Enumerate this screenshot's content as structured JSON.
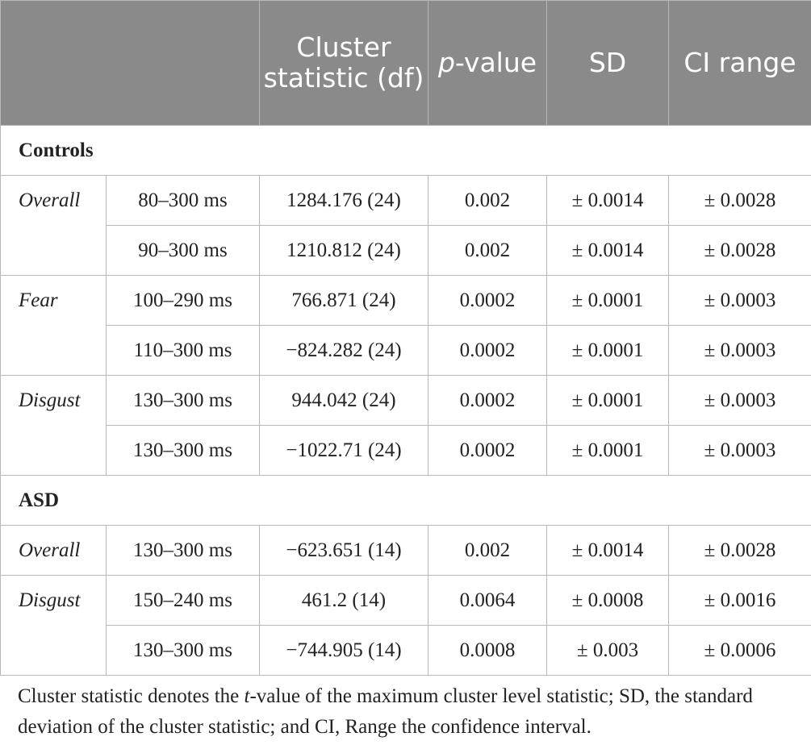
{
  "header": {
    "col_blank": "",
    "col_cluster": "Cluster statistic (df)",
    "col_p_italic": "p",
    "col_p_rest": "-value",
    "col_sd": "SD",
    "col_ci": "CI range"
  },
  "groups": [
    {
      "label": "Controls",
      "rows": [
        {
          "condition": "Overall",
          "window": "80–300 ms",
          "cluster": "1284.176 (24)",
          "p": "0.002",
          "sd": "± 0.0014",
          "ci": "± 0.0028"
        },
        {
          "condition": "",
          "window": "90–300 ms",
          "cluster": "1210.812 (24)",
          "p": "0.002",
          "sd": "± 0.0014",
          "ci": "± 0.0028"
        },
        {
          "condition": "Fear",
          "window": "100–290 ms",
          "cluster": "766.871 (24)",
          "p": "0.0002",
          "sd": "± 0.0001",
          "ci": "± 0.0003"
        },
        {
          "condition": "",
          "window": "110–300 ms",
          "cluster": "−824.282 (24)",
          "p": "0.0002",
          "sd": "± 0.0001",
          "ci": "± 0.0003"
        },
        {
          "condition": "Disgust",
          "window": "130–300 ms",
          "cluster": "944.042 (24)",
          "p": "0.0002",
          "sd": "± 0.0001",
          "ci": "± 0.0003"
        },
        {
          "condition": "",
          "window": "130–300 ms",
          "cluster": "−1022.71 (24)",
          "p": "0.0002",
          "sd": "± 0.0001",
          "ci": "± 0.0003"
        }
      ]
    },
    {
      "label": "ASD",
      "rows": [
        {
          "condition": "Overall",
          "window": "130–300 ms",
          "cluster": "−623.651 (14)",
          "p": "0.002",
          "sd": "± 0.0014",
          "ci": "± 0.0028"
        },
        {
          "condition": "Disgust",
          "window": "150–240 ms",
          "cluster": "461.2 (14)",
          "p": "0.0064",
          "sd": "± 0.0008",
          "ci": "± 0.0016"
        },
        {
          "condition": "",
          "window": "130–300 ms",
          "cluster": "−744.905 (14)",
          "p": "0.0008",
          "sd": "± 0.003",
          "ci": "± 0.0006"
        }
      ]
    }
  ],
  "footnote": {
    "part1": "Cluster statistic denotes the ",
    "part2_italic": "t",
    "part3": "-value of the maximum cluster level statistic; SD, the standard deviation of the cluster statistic; and CI, Range the confidence interval."
  }
}
